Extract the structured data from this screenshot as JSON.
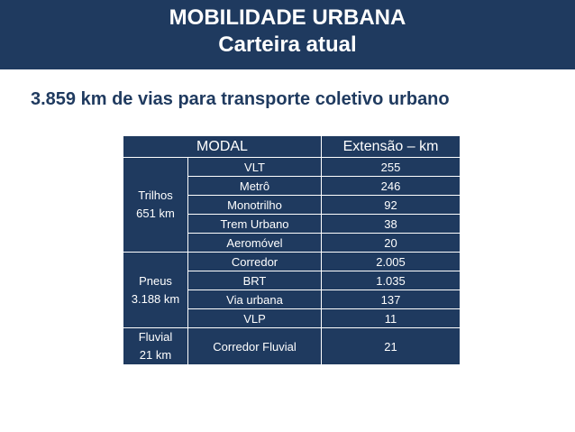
{
  "header": {
    "title": "MOBILIDADE URBANA",
    "subtitle": "Carteira atual"
  },
  "headline": "3.859 km de vias para transporte coletivo urbano",
  "table": {
    "col_modal": "MODAL",
    "col_extensao": "Extensão – km",
    "groups": [
      {
        "name": "Trilhos",
        "total": "651 km",
        "rows": [
          {
            "label": "VLT",
            "value": "255"
          },
          {
            "label": "Metrô",
            "value": "246"
          },
          {
            "label": "Monotrilho",
            "value": "92"
          },
          {
            "label": "Trem Urbano",
            "value": "38"
          },
          {
            "label": "Aeromóvel",
            "value": "20"
          }
        ]
      },
      {
        "name": "Pneus",
        "total": "3.188 km",
        "rows": [
          {
            "label": "Corredor",
            "value": "2.005"
          },
          {
            "label": "BRT",
            "value": "1.035"
          },
          {
            "label": "Via urbana",
            "value": "137"
          },
          {
            "label": "VLP",
            "value": "11"
          }
        ]
      },
      {
        "name": "Fluvial",
        "total": "21 km",
        "rows": [
          {
            "label": "Corredor Fluvial",
            "value": "21"
          }
        ]
      }
    ]
  }
}
